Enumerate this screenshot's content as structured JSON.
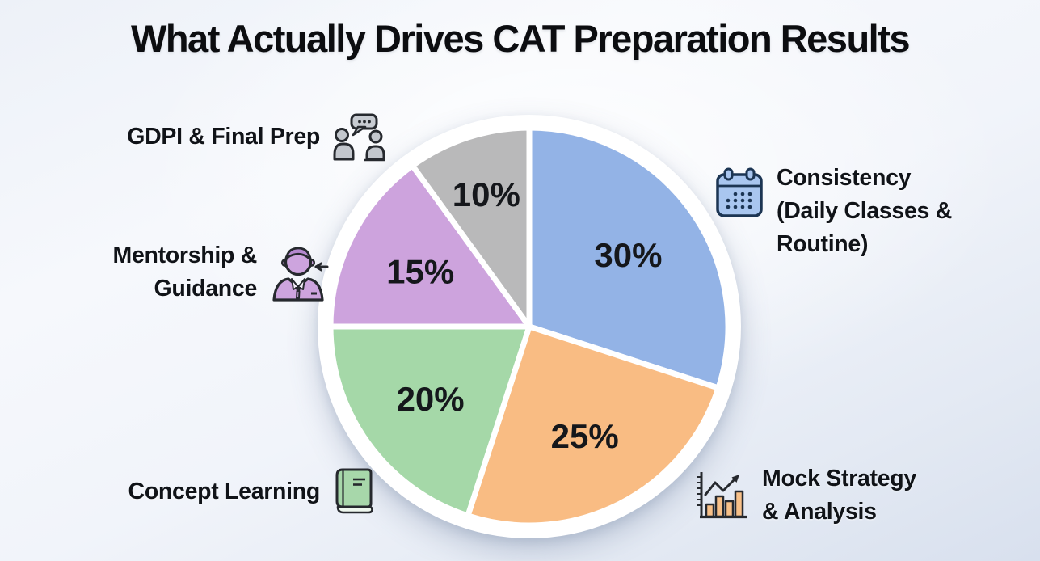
{
  "title": "What Actually Drives CAT Preparation Results",
  "chart_data": {
    "type": "pie",
    "title": "What Actually Drives CAT Preparation Results",
    "categories": [
      "Consistency (Daily Classes & Routine)",
      "Mock Strategy & Analysis",
      "Concept Learning",
      "Mentorship & Guidance",
      "GDPI & Final Prep"
    ],
    "values": [
      30,
      25,
      20,
      15,
      10
    ],
    "unit": "%",
    "slice_labels": [
      "30%",
      "25%",
      "20%",
      "15%",
      "10%"
    ],
    "colors": [
      "#93b3e6",
      "#f9bc83",
      "#a5d8a8",
      "#cda3dd",
      "#b9b9ba"
    ],
    "start_angle_deg": 0,
    "direction": "clockwise",
    "ring_color": "#ffffff",
    "slice_label_color": "#15171b",
    "legend_position": "around-callouts"
  },
  "callouts": {
    "gdpi": {
      "text": "GDPI & Final Prep",
      "icon": "discussion-icon",
      "side": "left"
    },
    "mentorship": {
      "text": "Mentorship &\nGuidance",
      "icon": "mentor-icon",
      "side": "left"
    },
    "concept_learning": {
      "text": "Concept Learning",
      "icon": "book-icon",
      "side": "left"
    },
    "consistency": {
      "text": "Consistency\n(Daily Classes &\nRoutine)",
      "icon": "calendar-icon",
      "side": "right"
    },
    "mock_strategy": {
      "text": "Mock Strategy\n& Analysis",
      "icon": "bar-chart-icon",
      "side": "right"
    }
  }
}
